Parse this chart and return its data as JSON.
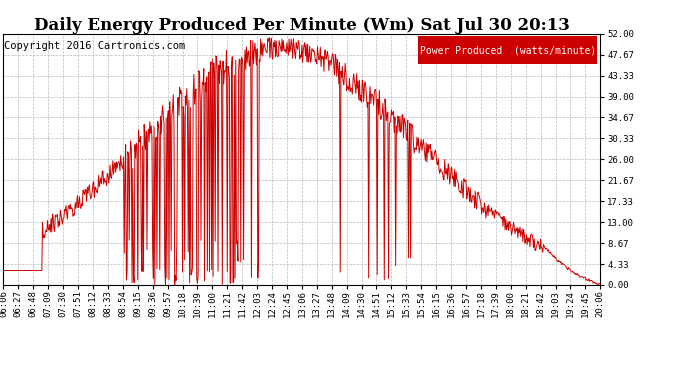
{
  "title": "Daily Energy Produced Per Minute (Wm) Sat Jul 30 20:13",
  "copyright": "Copyright 2016 Cartronics.com",
  "legend_label": "Power Produced  (watts/minute)",
  "legend_bg": "#cc0000",
  "legend_text_color": "#ffffff",
  "line_color": "#cc0000",
  "bg_color": "#ffffff",
  "plot_bg_color": "#ffffff",
  "grid_color": "#bbbbbb",
  "title_color": "#000000",
  "ymin": 0.0,
  "ymax": 52.0,
  "yticks": [
    0.0,
    4.33,
    8.67,
    13.0,
    17.33,
    21.67,
    26.0,
    30.33,
    34.67,
    39.0,
    43.33,
    47.67,
    52.0
  ],
  "xtick_labels": [
    "06:06",
    "06:27",
    "06:48",
    "07:09",
    "07:30",
    "07:51",
    "08:12",
    "08:33",
    "08:54",
    "09:15",
    "09:36",
    "09:57",
    "10:18",
    "10:39",
    "11:00",
    "11:21",
    "11:42",
    "12:03",
    "12:24",
    "12:45",
    "13:06",
    "13:27",
    "13:48",
    "14:09",
    "14:30",
    "14:51",
    "15:12",
    "15:33",
    "15:54",
    "16:15",
    "16:36",
    "16:57",
    "17:18",
    "17:39",
    "18:00",
    "18:21",
    "18:42",
    "19:03",
    "19:24",
    "19:45",
    "20:06"
  ],
  "title_fontsize": 12,
  "tick_fontsize": 6.5,
  "copyright_fontsize": 7.5,
  "legend_fontsize": 7
}
